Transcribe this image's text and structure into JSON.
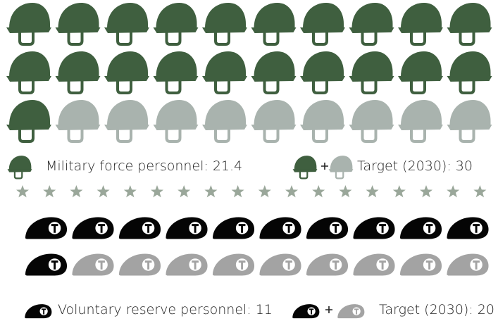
{
  "chart_data": [
    {
      "type": "pictogram",
      "icon": "helmet",
      "label": "Military force personnel:",
      "value": 21.4,
      "target_label": "Target (2030):",
      "target": 30,
      "color": "#3f5f3f",
      "target_color": "#a9b3ae"
    },
    {
      "type": "pictogram",
      "icon": "beret",
      "label": "Voluntary reserve personnel:",
      "value": 11,
      "target_label": "Target (2030):",
      "target": 20,
      "color": "#050505",
      "target_color": "#a3a3a3"
    }
  ]
}
